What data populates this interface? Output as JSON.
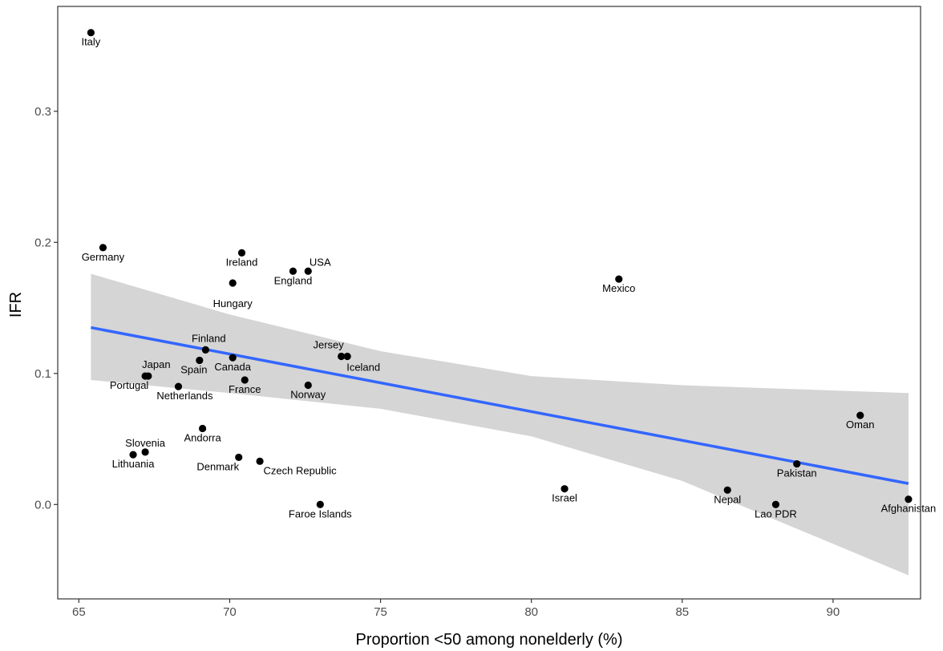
{
  "chart_data": {
    "type": "scatter",
    "title": "",
    "xlabel": "Proportion <50 among nonelderly (%)",
    "ylabel": "IFR",
    "xlim": [
      64.3,
      92.9
    ],
    "ylim": [
      -0.072,
      0.38
    ],
    "x_ticks": [
      65,
      70,
      75,
      80,
      85,
      90
    ],
    "y_ticks": [
      0.0,
      0.1,
      0.2,
      0.3
    ],
    "y_tick_labels": [
      "0.0",
      "0.1",
      "0.2",
      "0.3"
    ],
    "grid": false,
    "point_color": "#000000",
    "points": [
      {
        "label": "Italy",
        "x": 65.4,
        "y": 0.36
      },
      {
        "label": "Germany",
        "x": 65.8,
        "y": 0.196
      },
      {
        "label": "Ireland",
        "x": 70.4,
        "y": 0.192
      },
      {
        "label": "USA",
        "x": 72.6,
        "y": 0.178
      },
      {
        "label": "England",
        "x": 72.1,
        "y": 0.178
      },
      {
        "label": "Hungary",
        "x": 70.1,
        "y": 0.169
      },
      {
        "label": "Mexico",
        "x": 82.9,
        "y": 0.172
      },
      {
        "label": "Finland",
        "x": 69.2,
        "y": 0.118
      },
      {
        "label": "Jersey",
        "x": 73.7,
        "y": 0.113
      },
      {
        "label": "Iceland",
        "x": 73.9,
        "y": 0.113
      },
      {
        "label": "Spain",
        "x": 69.0,
        "y": 0.11
      },
      {
        "label": "Canada",
        "x": 70.1,
        "y": 0.112
      },
      {
        "label": "Japan",
        "x": 67.3,
        "y": 0.098
      },
      {
        "label": "Portugal",
        "x": 67.2,
        "y": 0.098
      },
      {
        "label": "France",
        "x": 70.5,
        "y": 0.095
      },
      {
        "label": "Netherlands",
        "x": 68.3,
        "y": 0.09
      },
      {
        "label": "Norway",
        "x": 72.6,
        "y": 0.091
      },
      {
        "label": "Oman",
        "x": 90.9,
        "y": 0.068
      },
      {
        "label": "Andorra",
        "x": 69.1,
        "y": 0.058
      },
      {
        "label": "Slovenia",
        "x": 67.2,
        "y": 0.04
      },
      {
        "label": "Lithuania",
        "x": 66.8,
        "y": 0.038
      },
      {
        "label": "Denmark",
        "x": 70.3,
        "y": 0.036
      },
      {
        "label": "Czech Republic",
        "x": 71.0,
        "y": 0.033
      },
      {
        "label": "Pakistan",
        "x": 88.8,
        "y": 0.031
      },
      {
        "label": "Israel",
        "x": 81.1,
        "y": 0.012
      },
      {
        "label": "Nepal",
        "x": 86.5,
        "y": 0.011
      },
      {
        "label": "Faroe Islands",
        "x": 73.0,
        "y": 0.0
      },
      {
        "label": "Lao PDR",
        "x": 88.1,
        "y": 0.0
      },
      {
        "label": "Afghanistan",
        "x": 92.5,
        "y": 0.004
      }
    ],
    "trend_line": {
      "color": "#3366ff",
      "x": [
        65.4,
        92.5
      ],
      "y": [
        0.135,
        0.016
      ]
    },
    "confidence_band": {
      "color": "#d3d3d3",
      "x": [
        65.4,
        70,
        75,
        80,
        85,
        92.5
      ],
      "lower": [
        0.095,
        0.085,
        0.073,
        0.052,
        0.018,
        -0.054
      ],
      "upper": [
        0.176,
        0.145,
        0.117,
        0.098,
        0.091,
        0.085
      ]
    }
  }
}
